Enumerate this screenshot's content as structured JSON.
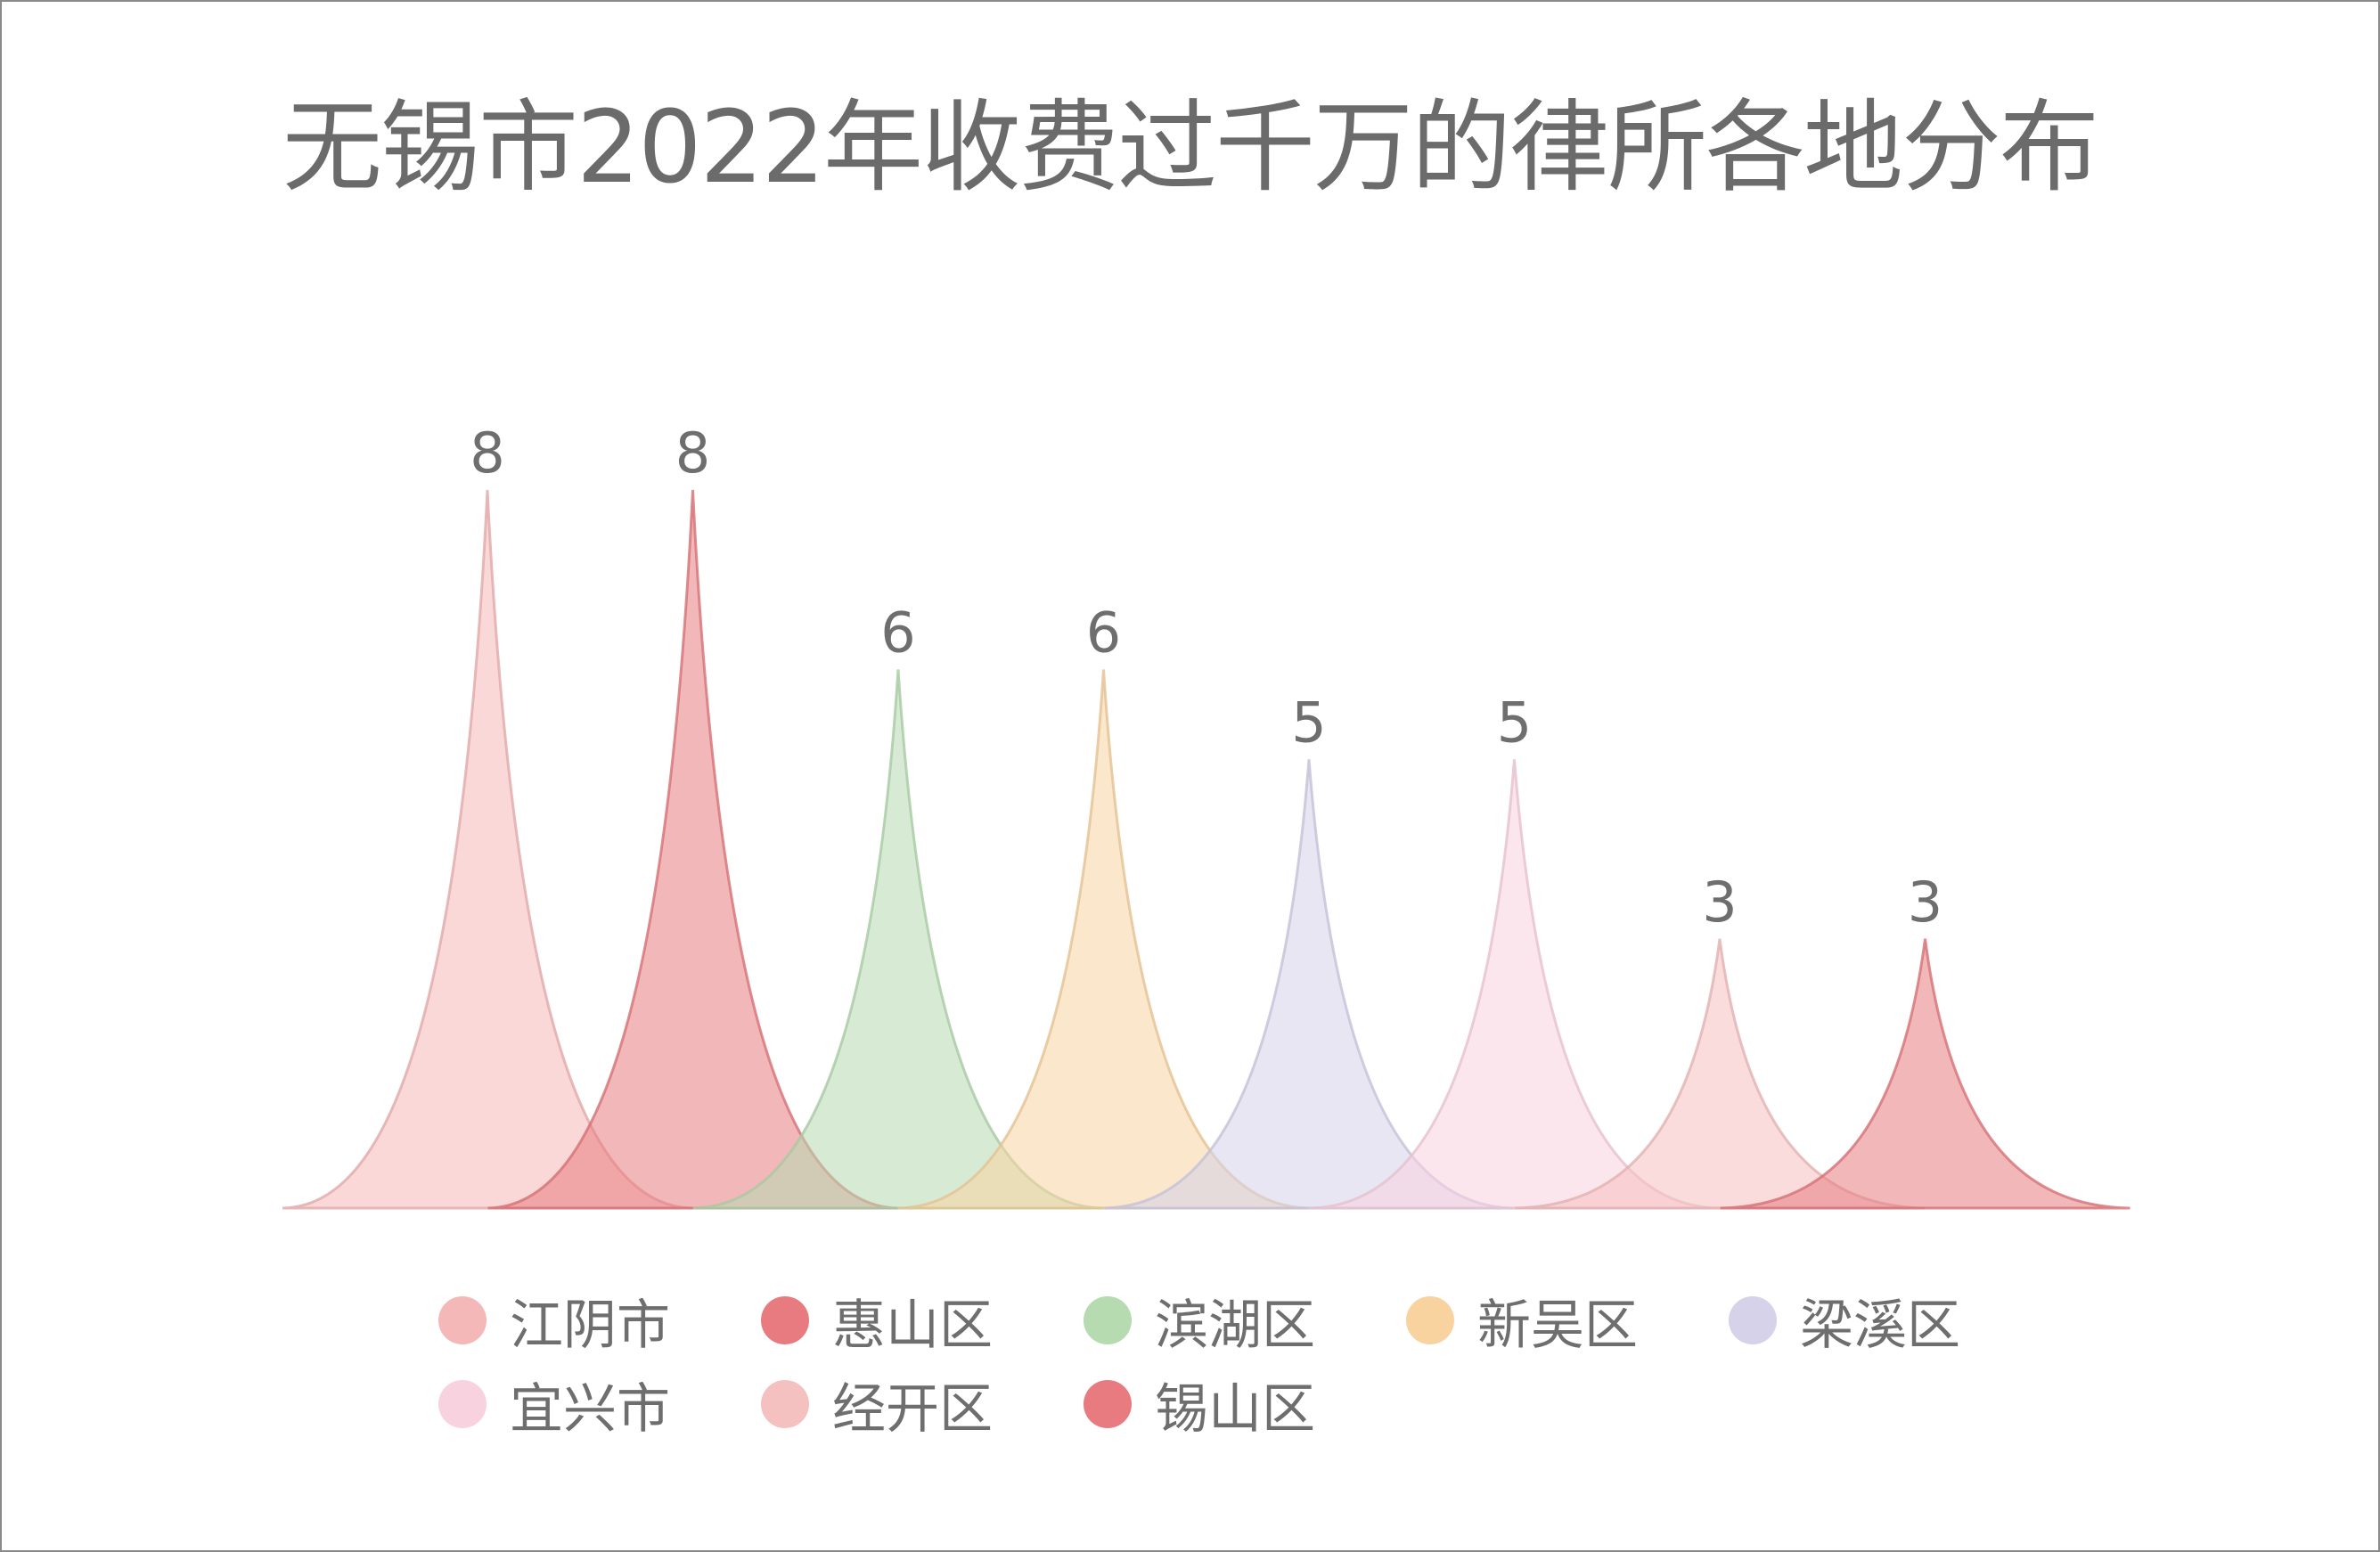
{
  "chart_data": {
    "type": "area",
    "title": "无锡市2022年收费过千万的律所各地分布",
    "categories": [
      "江阴市",
      "惠山区",
      "滨湖区",
      "新吴区",
      "梁溪区",
      "宜兴市",
      "经开区",
      "锡山区"
    ],
    "values": [
      8,
      8,
      6,
      6,
      5,
      5,
      3,
      3
    ],
    "colors": [
      "#f5b8b8",
      "#e87b7f",
      "#b6dbb0",
      "#f8d3a0",
      "#d5d2ea",
      "#f9d2e0",
      "#f5c0c0",
      "#e87b7f"
    ],
    "ylim": [
      0,
      8
    ],
    "grid": false,
    "legend_position": "bottom"
  }
}
